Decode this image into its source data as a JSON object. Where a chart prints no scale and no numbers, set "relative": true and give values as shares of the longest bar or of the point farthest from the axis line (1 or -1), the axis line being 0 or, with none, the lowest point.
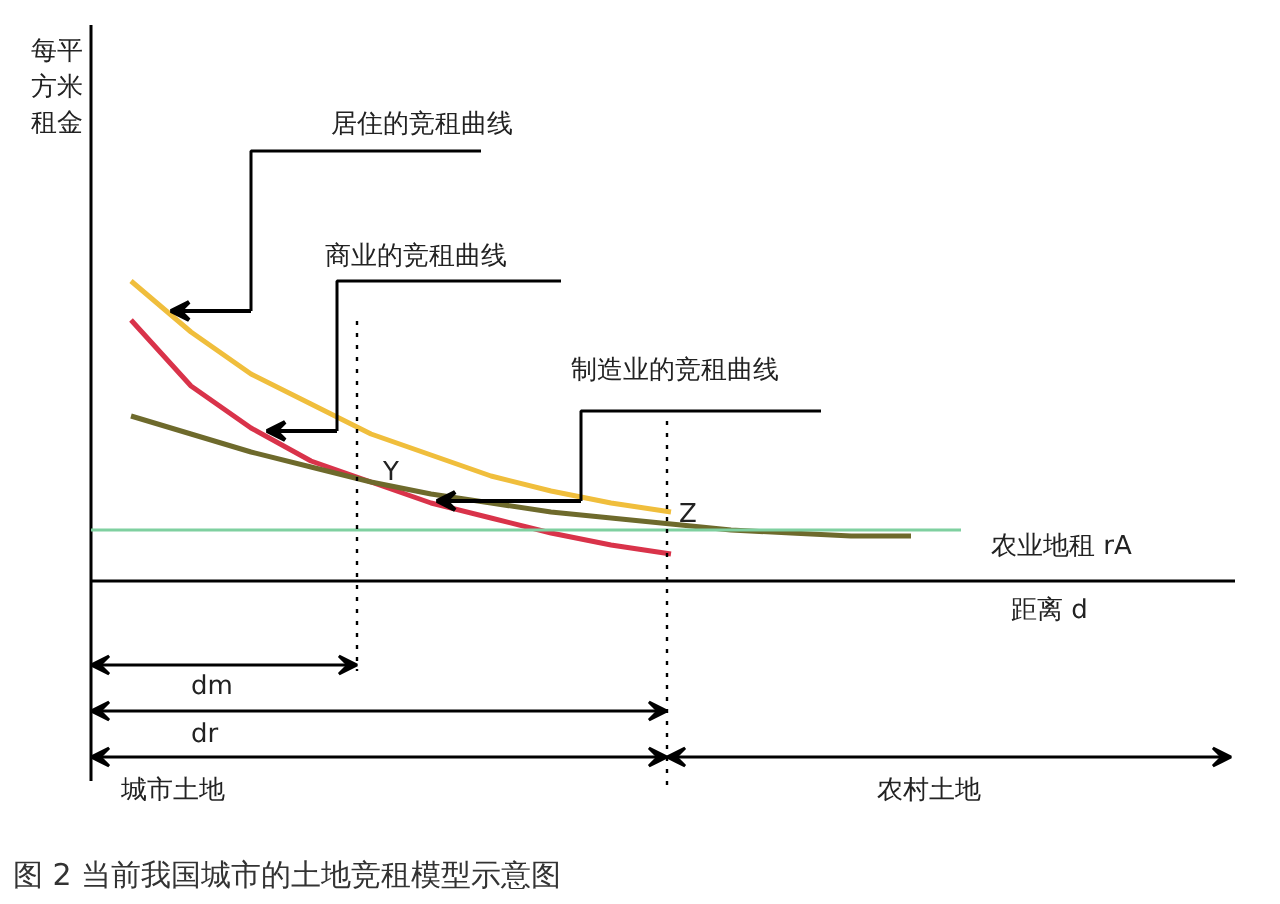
{
  "chart_data": {
    "type": "line",
    "title": "图 2 当前我国城市的土地竞租模型示意图",
    "xlabel": "距离 d",
    "relative": true,
    "tick_labels": false,
    "grid": false,
    "categories": [
      null,
      null,
      null,
      null,
      null,
      null,
      null,
      null,
      null,
      null,
      null,
      null,
      null,
      null
    ],
    "series": [
      {
        "name": "居住的竞租曲线",
        "color": "#f0be3c",
        "values": [
          1.0,
          0.83,
          0.69,
          0.59,
          0.49,
          0.42,
          0.35,
          0.3,
          0.26,
          0.23,
          null,
          null,
          null,
          null
        ]
      },
      {
        "name": "商业的竞租曲线",
        "color": "#d9334a",
        "values": [
          0.87,
          0.65,
          0.51,
          0.4,
          0.33,
          0.26,
          0.21,
          0.16,
          0.12,
          0.09,
          null,
          null,
          null,
          null
        ]
      },
      {
        "name": "制造业的竞租曲线",
        "color": "#6e6a2c",
        "values": [
          0.55,
          0.49,
          0.43,
          0.38,
          0.33,
          0.29,
          0.26,
          0.23,
          0.21,
          0.19,
          0.17,
          0.16,
          0.15,
          0.15
        ]
      }
    ],
    "ref_lines": [
      {
        "axis": "y",
        "value": 0.17,
        "label": "农业地租 rA",
        "color": "#7fd0a0",
        "line_style": "solid"
      }
    ],
    "annotations": [
      "Y",
      "Z",
      "dm",
      "dr",
      "城市土地",
      "农村土地",
      "每平方米租金"
    ]
  }
}
